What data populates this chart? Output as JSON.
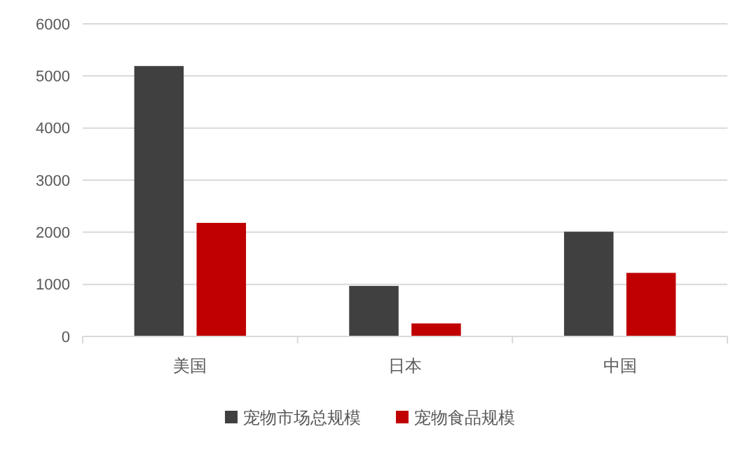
{
  "chart_data": {
    "type": "bar",
    "categories": [
      "美国",
      "日本",
      "中国"
    ],
    "series": [
      {
        "name": "宠物市场总规模",
        "color": "#404040",
        "values": [
          5190,
          970,
          2010
        ]
      },
      {
        "name": "宠物食品规模",
        "color": "#c00000",
        "values": [
          2180,
          250,
          1220
        ]
      }
    ],
    "ylim": [
      0,
      6000
    ],
    "yticks": [
      0,
      1000,
      2000,
      3000,
      4000,
      5000,
      6000
    ],
    "grid": "y",
    "legend": "bottom"
  }
}
